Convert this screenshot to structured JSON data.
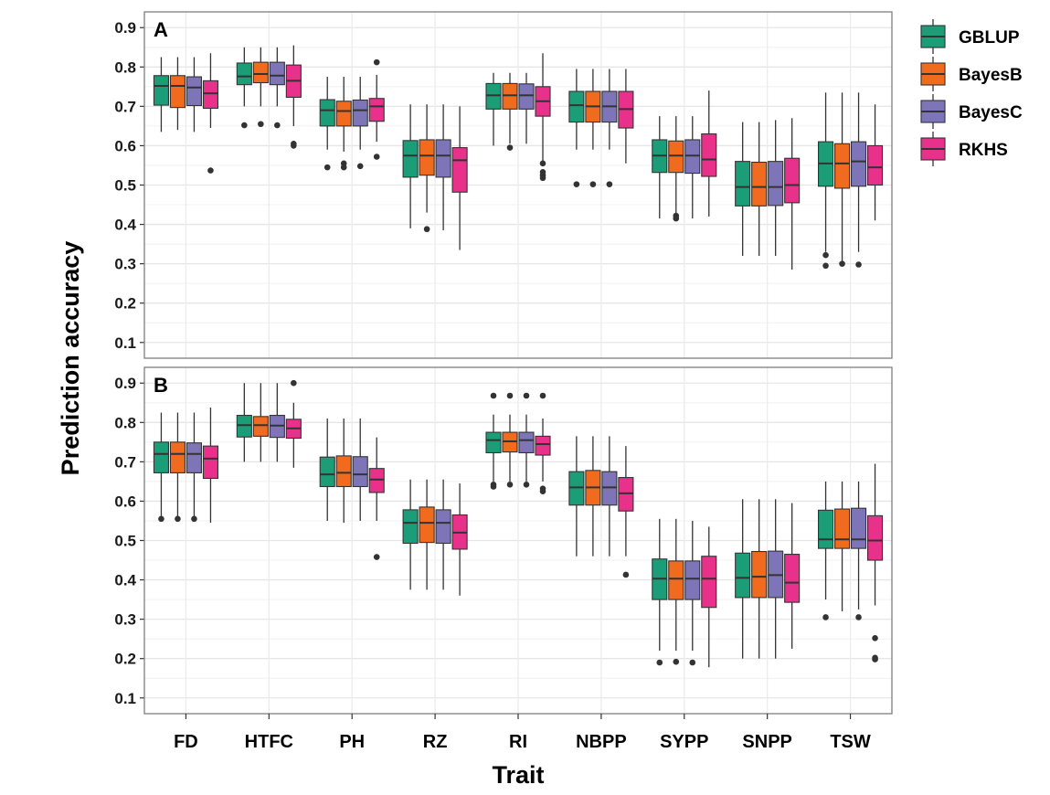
{
  "chart_data": {
    "type": "boxplot",
    "ylabel": "Prediction accuracy",
    "xlabel": "Trait",
    "categories": [
      "FD",
      "HTFC",
      "PH",
      "RZ",
      "RI",
      "NBPP",
      "SYPP",
      "SNPP",
      "TSW"
    ],
    "methods": [
      "GBLUP",
      "BayesB",
      "BayesC",
      "RKHS"
    ],
    "colors": {
      "GBLUP": "#1B9E77",
      "BayesB": "#F06B1E",
      "BayesC": "#7E75B8",
      "RKHS": "#E8318A"
    },
    "yticks": [
      "0.1",
      "0.2",
      "0.3",
      "0.4",
      "0.5",
      "0.6",
      "0.7",
      "0.8",
      "0.9"
    ],
    "panels": [
      {
        "label": "A",
        "ylim": [
          0.06,
          0.94
        ],
        "boxes": {
          "FD": [
            [
              0.635,
              0.703,
              0.752,
              0.778,
              0.825,
              []
            ],
            [
              0.64,
              0.697,
              0.752,
              0.778,
              0.825,
              []
            ],
            [
              0.635,
              0.702,
              0.748,
              0.775,
              0.825,
              []
            ],
            [
              0.645,
              0.695,
              0.733,
              0.765,
              0.835,
              [
                0.537
              ]
            ]
          ],
          "HTFC": [
            [
              0.7,
              0.755,
              0.776,
              0.81,
              0.85,
              [
                0.652
              ]
            ],
            [
              0.7,
              0.76,
              0.782,
              0.812,
              0.85,
              [
                0.655
              ]
            ],
            [
              0.7,
              0.755,
              0.778,
              0.812,
              0.85,
              [
                0.652
              ]
            ],
            [
              0.65,
              0.723,
              0.765,
              0.805,
              0.855,
              [
                0.605,
                0.6
              ]
            ]
          ],
          "PH": [
            [
              0.59,
              0.65,
              0.69,
              0.717,
              0.775,
              [
                0.545
              ]
            ],
            [
              0.585,
              0.65,
              0.688,
              0.713,
              0.775,
              [
                0.555,
                0.545
              ]
            ],
            [
              0.59,
              0.65,
              0.69,
              0.716,
              0.775,
              [
                0.548
              ]
            ],
            [
              0.61,
              0.662,
              0.7,
              0.72,
              0.78,
              [
                0.812,
                0.572
              ]
            ]
          ],
          "RZ": [
            [
              0.39,
              0.52,
              0.575,
              0.613,
              0.705,
              []
            ],
            [
              0.43,
              0.525,
              0.575,
              0.615,
              0.705,
              [
                0.388
              ]
            ],
            [
              0.385,
              0.52,
              0.575,
              0.615,
              0.705,
              []
            ],
            [
              0.335,
              0.482,
              0.563,
              0.595,
              0.7,
              []
            ]
          ],
          "RI": [
            [
              0.6,
              0.693,
              0.728,
              0.758,
              0.785,
              []
            ],
            [
              0.605,
              0.693,
              0.728,
              0.758,
              0.785,
              [
                0.595
              ]
            ],
            [
              0.605,
              0.693,
              0.728,
              0.757,
              0.785,
              []
            ],
            [
              0.56,
              0.675,
              0.713,
              0.75,
              0.835,
              [
                0.555,
                0.533,
                0.525,
                0.518
              ]
            ]
          ],
          "NBPP": [
            [
              0.59,
              0.66,
              0.703,
              0.738,
              0.795,
              [
                0.502
              ]
            ],
            [
              0.59,
              0.66,
              0.7,
              0.738,
              0.795,
              [
                0.502
              ]
            ],
            [
              0.59,
              0.66,
              0.7,
              0.738,
              0.795,
              [
                0.502
              ]
            ],
            [
              0.555,
              0.645,
              0.693,
              0.738,
              0.795,
              []
            ]
          ],
          "SYPP": [
            [
              0.415,
              0.532,
              0.575,
              0.615,
              0.675,
              []
            ],
            [
              0.425,
              0.532,
              0.575,
              0.612,
              0.675,
              [
                0.422,
                0.415
              ]
            ],
            [
              0.415,
              0.53,
              0.575,
              0.615,
              0.675,
              []
            ],
            [
              0.42,
              0.522,
              0.565,
              0.63,
              0.74,
              []
            ]
          ],
          "SNPP": [
            [
              0.32,
              0.447,
              0.495,
              0.56,
              0.66,
              []
            ],
            [
              0.32,
              0.447,
              0.495,
              0.558,
              0.66,
              []
            ],
            [
              0.32,
              0.448,
              0.495,
              0.56,
              0.665,
              []
            ],
            [
              0.285,
              0.455,
              0.5,
              0.568,
              0.67,
              []
            ]
          ],
          "TSW": [
            [
              0.33,
              0.497,
              0.555,
              0.61,
              0.735,
              [
                0.322,
                0.295
              ]
            ],
            [
              0.3,
              0.492,
              0.555,
              0.605,
              0.735,
              [
                0.3
              ]
            ],
            [
              0.33,
              0.497,
              0.56,
              0.61,
              0.735,
              [
                0.298
              ]
            ],
            [
              0.41,
              0.5,
              0.545,
              0.6,
              0.705,
              []
            ]
          ]
        }
      },
      {
        "label": "B",
        "ylim": [
          0.06,
          0.94
        ],
        "boxes": {
          "FD": [
            [
              0.555,
              0.672,
              0.72,
              0.75,
              0.825,
              [
                0.555
              ]
            ],
            [
              0.555,
              0.672,
              0.72,
              0.75,
              0.825,
              [
                0.555
              ]
            ],
            [
              0.555,
              0.672,
              0.72,
              0.748,
              0.825,
              [
                0.555
              ]
            ],
            [
              0.545,
              0.658,
              0.708,
              0.74,
              0.838,
              []
            ]
          ],
          "HTFC": [
            [
              0.7,
              0.763,
              0.793,
              0.818,
              0.9,
              []
            ],
            [
              0.7,
              0.765,
              0.793,
              0.815,
              0.9,
              []
            ],
            [
              0.7,
              0.762,
              0.792,
              0.818,
              0.9,
              []
            ],
            [
              0.685,
              0.76,
              0.785,
              0.808,
              0.85,
              [
                0.9
              ]
            ]
          ],
          "PH": [
            [
              0.55,
              0.637,
              0.668,
              0.712,
              0.81,
              []
            ],
            [
              0.545,
              0.637,
              0.672,
              0.715,
              0.81,
              []
            ],
            [
              0.55,
              0.637,
              0.668,
              0.713,
              0.81,
              []
            ],
            [
              0.55,
              0.622,
              0.655,
              0.683,
              0.762,
              [
                0.458
              ]
            ]
          ],
          "RZ": [
            [
              0.375,
              0.493,
              0.545,
              0.578,
              0.655,
              []
            ],
            [
              0.375,
              0.495,
              0.545,
              0.585,
              0.655,
              []
            ],
            [
              0.375,
              0.493,
              0.545,
              0.578,
              0.655,
              []
            ],
            [
              0.36,
              0.478,
              0.52,
              0.565,
              0.645,
              []
            ]
          ],
          "RI": [
            [
              0.65,
              0.723,
              0.755,
              0.775,
              0.82,
              [
                0.868,
                0.642,
                0.637
              ]
            ],
            [
              0.65,
              0.725,
              0.752,
              0.775,
              0.82,
              [
                0.868,
                0.642
              ]
            ],
            [
              0.65,
              0.723,
              0.755,
              0.775,
              0.82,
              [
                0.868,
                0.642
              ]
            ],
            [
              0.65,
              0.717,
              0.745,
              0.765,
              0.81,
              [
                0.868,
                0.632,
                0.625
              ]
            ]
          ],
          "NBPP": [
            [
              0.46,
              0.59,
              0.635,
              0.675,
              0.765,
              []
            ],
            [
              0.46,
              0.59,
              0.635,
              0.678,
              0.765,
              []
            ],
            [
              0.46,
              0.59,
              0.635,
              0.675,
              0.765,
              []
            ],
            [
              0.46,
              0.575,
              0.62,
              0.66,
              0.74,
              [
                0.413
              ]
            ]
          ],
          "SYPP": [
            [
              0.22,
              0.35,
              0.403,
              0.453,
              0.555,
              [
                0.19
              ]
            ],
            [
              0.22,
              0.35,
              0.403,
              0.448,
              0.555,
              [
                0.192
              ]
            ],
            [
              0.22,
              0.35,
              0.403,
              0.448,
              0.55,
              [
                0.19
              ]
            ],
            [
              0.178,
              0.33,
              0.403,
              0.46,
              0.535,
              []
            ]
          ],
          "SNPP": [
            [
              0.2,
              0.355,
              0.405,
              0.468,
              0.605,
              []
            ],
            [
              0.2,
              0.355,
              0.408,
              0.472,
              0.605,
              []
            ],
            [
              0.2,
              0.355,
              0.412,
              0.473,
              0.605,
              []
            ],
            [
              0.225,
              0.343,
              0.393,
              0.465,
              0.595,
              []
            ]
          ],
          "TSW": [
            [
              0.35,
              0.48,
              0.503,
              0.577,
              0.65,
              [
                0.305
              ]
            ],
            [
              0.32,
              0.48,
              0.503,
              0.58,
              0.65,
              []
            ],
            [
              0.325,
              0.48,
              0.503,
              0.582,
              0.65,
              [
                0.305
              ]
            ],
            [
              0.335,
              0.45,
              0.5,
              0.563,
              0.695,
              [
                0.252,
                0.202,
                0.198
              ]
            ]
          ]
        }
      }
    ],
    "legend_position": "right"
  }
}
